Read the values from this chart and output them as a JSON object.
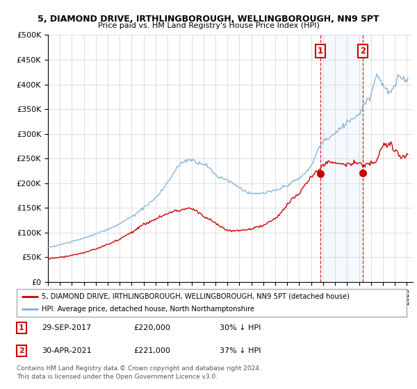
{
  "title1": "5, DIAMOND DRIVE, IRTHLINGBOROUGH, WELLINGBOROUGH, NN9 5PT",
  "title2": "Price paid vs. HM Land Registry's House Price Index (HPI)",
  "legend_line1": "5, DIAMOND DRIVE, IRTHLINGBOROUGH, WELLINGBOROUGH, NN9 5PT (detached house)",
  "legend_line2": "HPI: Average price, detached house, North Northamptonshire",
  "sale1_date": "29-SEP-2017",
  "sale1_price": "£220,000",
  "sale1_hpi": "30% ↓ HPI",
  "sale2_date": "30-APR-2021",
  "sale2_price": "£221,000",
  "sale2_hpi": "37% ↓ HPI",
  "footnote1": "Contains HM Land Registry data © Crown copyright and database right 2024.",
  "footnote2": "This data is licensed under the Open Government Licence v3.0.",
  "red_color": "#cc0000",
  "blue_color": "#7aaed6",
  "highlight_bg": "#ddeeff",
  "ylim_max": 500000,
  "ylim_min": 0,
  "xmin": 1995,
  "xmax": 2025.5,
  "sale1_year": 2017.75,
  "sale2_year": 2021.33
}
